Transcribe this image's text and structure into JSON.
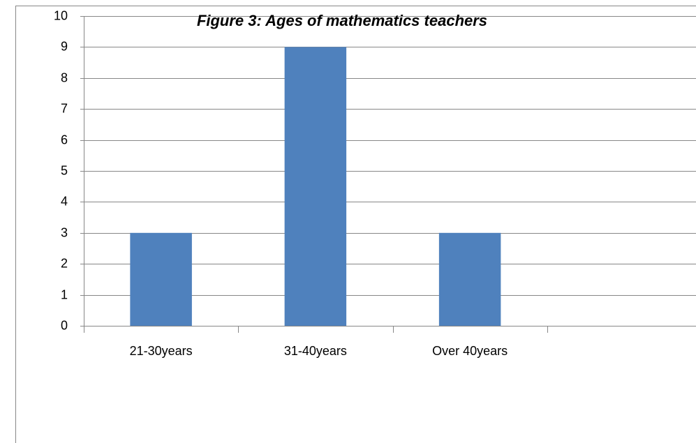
{
  "chart_data": {
    "type": "bar",
    "title": "Figure 3: Ages of mathematics teachers",
    "categories": [
      "21-30years",
      "31-40years",
      "Over 40years",
      null
    ],
    "values": [
      3,
      9,
      3,
      null
    ],
    "color": "#4f81bd",
    "ylim": [
      0,
      10
    ],
    "yticks": [
      0,
      1,
      2,
      3,
      4,
      5,
      6,
      7,
      8,
      9,
      10
    ],
    "grid": true
  }
}
